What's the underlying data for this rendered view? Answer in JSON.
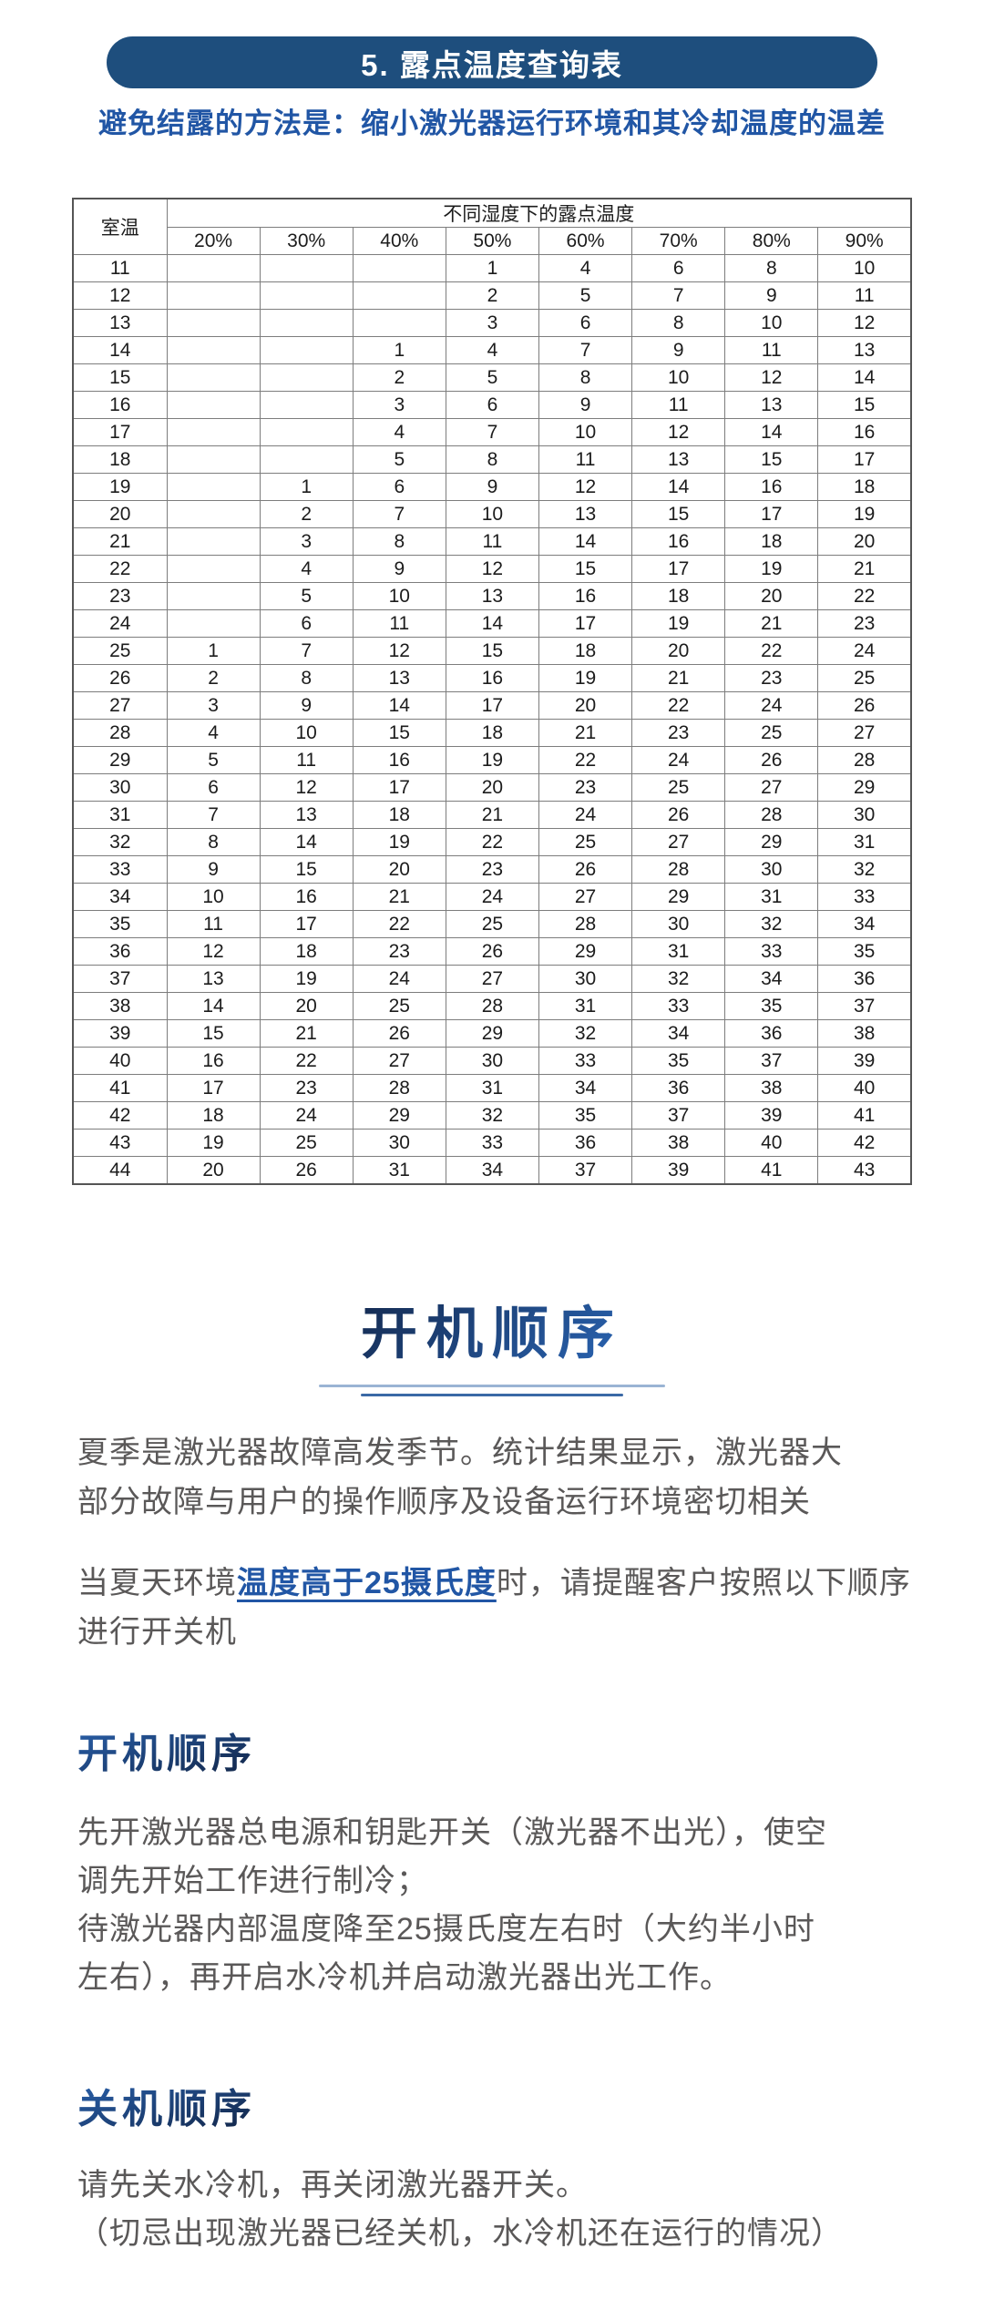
{
  "header": {
    "title_pill": "5. 露点温度查询表",
    "subtitle": "避免结露的方法是：缩小激光器运行环境和其冷却温度的温差",
    "pill_color": "#1e4e7d",
    "subtitle_color": "#2156a5"
  },
  "table": {
    "corner_label": "室温",
    "span_header": "不同湿度下的露点温度",
    "humidity_headers": [
      "20%",
      "30%",
      "40%",
      "50%",
      "60%",
      "70%",
      "80%",
      "90%"
    ],
    "colors": {
      "g": "#94a98c",
      "o": "#e7b062",
      "O": "#f6a71d",
      "r": "#b04b55",
      "w": "#ffffff",
      "red_cell_text": "#eed9da"
    },
    "rows": [
      {
        "t": "11",
        "cells": [
          ":w",
          ":w",
          ":w",
          "1:g",
          "4:o",
          "6:o",
          "8:r",
          "10:r"
        ]
      },
      {
        "t": "12",
        "cells": [
          ":w",
          ":w",
          ":w",
          "2:g",
          "5:o",
          "7:o",
          "9:r",
          "11:r"
        ]
      },
      {
        "t": "13",
        "cells": [
          ":w",
          ":w",
          ":w",
          "3:g",
          "6:o",
          "8:o",
          "10:r",
          "12:r"
        ]
      },
      {
        "t": "14",
        "cells": [
          ":w",
          ":w",
          "1:g",
          "4:g",
          "7:o",
          "9:o",
          "11:r",
          "13:r"
        ]
      },
      {
        "t": "15",
        "cells": [
          ":w",
          ":w",
          "2:g",
          "5:g",
          "8:o",
          "10:o",
          "12:r",
          "14:r"
        ]
      },
      {
        "t": "16",
        "cells": [
          ":w",
          ":w",
          "3:g",
          "6:g",
          "9:o",
          "11:o",
          "13:r",
          "15:r"
        ]
      },
      {
        "t": "17",
        "cells": [
          ":w",
          ":w",
          "4:g",
          "7:g",
          "10:o",
          "12:o",
          "14:r",
          "16:r"
        ]
      },
      {
        "t": "18",
        "cells": [
          ":w",
          ":w",
          "5:g",
          "8:g",
          "11:o",
          "13:o",
          "15:r",
          "17:r"
        ]
      },
      {
        "t": "19",
        "cells": [
          ":w",
          "1:g",
          "6:g",
          "9:g",
          "12:o",
          "14:o",
          "16:r",
          "18:r"
        ]
      },
      {
        "t": "20",
        "cells": [
          ":w",
          "2:g",
          "7:g",
          "10:g",
          "13:o",
          "15:o",
          "17:r",
          "19:r"
        ]
      },
      {
        "t": "21",
        "cells": [
          ":w",
          "3:g",
          "8:g",
          "11:g",
          "14:o",
          "16:o",
          "18:r",
          "20:r"
        ]
      },
      {
        "t": "22",
        "cells": [
          ":w",
          "4:g",
          "9:g",
          "12:g",
          "15:o",
          "17:o",
          "19:r",
          "21:r"
        ]
      },
      {
        "t": "23",
        "cells": [
          ":w",
          "5:g",
          "10:g",
          "13:g",
          "16:o",
          "18:o",
          "20:r",
          "22:r"
        ]
      },
      {
        "t": "24",
        "cells": [
          ":w",
          "6:g",
          "11:g",
          "14:g",
          "17:o",
          "19:o",
          "21:r",
          "23:r"
        ]
      },
      {
        "t": "25",
        "cells": [
          "1:g",
          "7:g",
          "12:g",
          "15:g",
          "18:o",
          "20:o",
          "22:r",
          "24:r"
        ]
      },
      {
        "t": "26",
        "cells": [
          "2:g",
          "8:g",
          "13:g",
          "16:g",
          "19:o",
          "21:o",
          "23:r",
          "25:r"
        ]
      },
      {
        "t": "27",
        "cells": [
          "3:g",
          "9:g",
          "14:g",
          "17:g",
          "20:o",
          "22:o",
          "24:r",
          "26:r"
        ]
      },
      {
        "t": "28",
        "cells": [
          "4:g",
          "10:g",
          "15:g",
          "18:g",
          "21:o",
          "23:o",
          "25:r",
          "27:r"
        ]
      },
      {
        "t": "29",
        "cells": [
          "5:g",
          "11:g",
          "16:g",
          "19:g",
          "22:o",
          "24:o",
          "26:r",
          "28:r"
        ]
      },
      {
        "t": "30",
        "cells": [
          "6:g",
          "12:g",
          "17:g",
          "20:g",
          "23:o",
          "25:o",
          "27:r",
          "29:r"
        ]
      },
      {
        "t": "31",
        "cells": [
          "7:g",
          "13:g",
          "18:g",
          "21:g",
          "24:o",
          "26:o",
          "28:r",
          "30:r"
        ]
      },
      {
        "t": "32",
        "cells": [
          "8:g",
          "14:g",
          "19:g",
          "22:g",
          "25:o",
          "27:o",
          "29:r",
          "31:r"
        ]
      },
      {
        "t": "33",
        "cells": [
          "9:g",
          "15:g",
          "20:g",
          "23:g",
          "26:o",
          "28:o",
          "30:r",
          "32:r"
        ]
      },
      {
        "t": "34",
        "cells": [
          "10:g",
          "16:g",
          "21:g",
          "24:g",
          "27:o",
          "29:O",
          "31:r",
          "33:r"
        ]
      },
      {
        "t": "35",
        "cells": [
          "11:g",
          "17:g",
          "22:g",
          "25:o",
          "28:o",
          "30:r",
          "32:r",
          "34:r"
        ]
      },
      {
        "t": "36",
        "cells": [
          "12:g",
          "18:g",
          "23:g",
          "26:o",
          "29:O",
          "31:r",
          "33:r",
          "35:r"
        ]
      },
      {
        "t": "37",
        "cells": [
          "13:g",
          "19:g",
          "24:g",
          "27:o",
          "30:r",
          "32:r",
          "34:r",
          "36:r"
        ]
      },
      {
        "t": "38",
        "cells": [
          "14:g",
          "20:g",
          "25:o",
          "28:o",
          "31:r",
          "33:r",
          "35:r",
          "37:r"
        ]
      },
      {
        "t": "39",
        "cells": [
          "15:g",
          "21:g",
          "26:o",
          "29:O",
          "32:r",
          "34:r",
          "36:r",
          "38:r"
        ]
      },
      {
        "t": "40",
        "cells": [
          "16:g",
          "22:g",
          "27:o",
          "30:r",
          "33:r",
          "35:r",
          "37:r",
          "39:r"
        ]
      },
      {
        "t": "41",
        "cells": [
          "17:g",
          "23:g",
          "28:o",
          "31:r",
          "34:r",
          "36:r",
          "38:r",
          "40:r"
        ]
      },
      {
        "t": "42",
        "cells": [
          "18:g",
          "24:g",
          "29:O",
          "32:r",
          "35:r",
          "37:r",
          "39:r",
          "41:r"
        ]
      },
      {
        "t": "43",
        "cells": [
          "19:g",
          "25:o",
          "30:r",
          "33:r",
          "36:r",
          "38:r",
          "40:r",
          "42:r"
        ]
      },
      {
        "t": "44",
        "cells": [
          "20:g",
          "26:o",
          "31:r",
          "34:r",
          "37:r",
          "39:r",
          "41:r",
          "43:r"
        ]
      }
    ]
  },
  "sections": {
    "main_title": "开机顺序",
    "intro": "夏季是激光器故障高发季节。统计结果显示，激光器大\n部分故障与用户的操作顺序及设备运行环境密切相关",
    "notice": {
      "pre": "当夏天环境",
      "highlight": "温度高于25摄氏度",
      "post": "时，请提醒客户按照以下顺序进行开关机"
    },
    "power_on": {
      "heading": "开机顺序",
      "body": "先开激光器总电源和钥匙开关（激光器不出光），使空\n调先开始工作进行制冷；\n待激光器内部温度降至25摄氏度左右时（大约半小时\n左右），再开启水冷机并启动激光器出光工作。"
    },
    "power_off": {
      "heading": "关机顺序",
      "body": "请先关水冷机，再关闭激光器开关。\n（切忌出现激光器已经关机，水冷机还在运行的情况）"
    }
  }
}
